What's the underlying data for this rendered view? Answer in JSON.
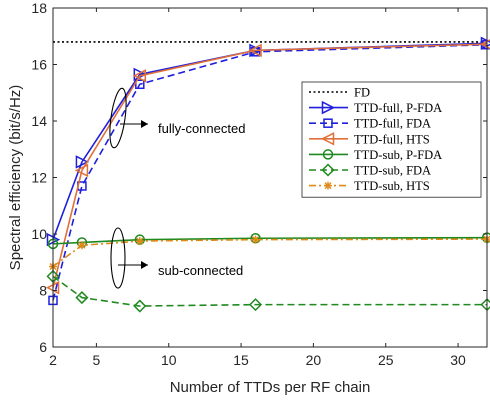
{
  "chart_data": {
    "type": "line",
    "xlabel": "Number of TTDs per RF chain",
    "ylabel": "Spectral efficiency (bit/s/Hz)",
    "xlim": [
      2,
      32
    ],
    "ylim": [
      6,
      18
    ],
    "xticks": [
      2,
      5,
      10,
      15,
      20,
      25,
      30
    ],
    "yticks": [
      6,
      8,
      10,
      12,
      14,
      16,
      18
    ],
    "grid": false,
    "legend_position": "right, middle-upper",
    "annotations": [
      {
        "text": "fully-connected",
        "x": 6.5,
        "y": 13.8
      },
      {
        "text": "sub-connected",
        "x": 6.5,
        "y": 9.0
      }
    ],
    "series": [
      {
        "name": "FD",
        "x": [
          2,
          32
        ],
        "y": [
          16.8,
          16.8
        ],
        "color": "#000000",
        "dash": "dotted",
        "marker": "none"
      },
      {
        "name": "TTD-full, P-FDA",
        "x": [
          2,
          4,
          8,
          16,
          32
        ],
        "y": [
          9.8,
          12.55,
          15.65,
          16.5,
          16.75
        ],
        "color": "#1f1fdd",
        "dash": "solid",
        "marker": "triangle-right"
      },
      {
        "name": "TTD-full, FDA",
        "x": [
          2,
          4,
          8,
          16,
          32
        ],
        "y": [
          7.65,
          11.7,
          15.3,
          16.45,
          16.7
        ],
        "color": "#1f1fdd",
        "dash": "dashed",
        "marker": "square"
      },
      {
        "name": "TTD-full, HTS",
        "x": [
          2,
          4,
          8,
          16,
          32
        ],
        "y": [
          8.1,
          12.25,
          15.6,
          16.5,
          16.72
        ],
        "color": "#e0703a",
        "dash": "solid",
        "marker": "triangle-left"
      },
      {
        "name": "TTD-sub, P-FDA",
        "x": [
          2,
          4,
          8,
          16,
          32
        ],
        "y": [
          9.65,
          9.7,
          9.8,
          9.85,
          9.87
        ],
        "color": "#1f8a1f",
        "dash": "solid",
        "marker": "circle"
      },
      {
        "name": "TTD-sub, FDA",
        "x": [
          2,
          4,
          8,
          16,
          32
        ],
        "y": [
          8.5,
          7.75,
          7.45,
          7.5,
          7.5
        ],
        "color": "#1f8a1f",
        "dash": "dashed",
        "marker": "diamond"
      },
      {
        "name": "TTD-sub, HTS",
        "x": [
          2,
          4,
          8,
          16,
          32
        ],
        "y": [
          8.85,
          9.6,
          9.75,
          9.8,
          9.82
        ],
        "color": "#e08a1a",
        "dash": "dashdot",
        "marker": "asterisk"
      }
    ]
  }
}
